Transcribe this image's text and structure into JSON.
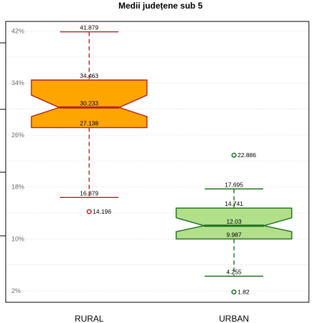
{
  "chart_data": {
    "type": "box",
    "title": "Medii județene sub 5",
    "xlabel": "",
    "ylabel": "",
    "ylim": [
      0,
      44
    ],
    "y_ticks": [
      2,
      10,
      18,
      26,
      34,
      42
    ],
    "y_tick_labels": [
      "2%",
      "10%",
      "18%",
      "26%",
      "34%",
      "42%"
    ],
    "grid": true,
    "categories": [
      "RURAL",
      "URBAN"
    ],
    "boxes": [
      {
        "category": "RURAL",
        "whisker_high": 41.879,
        "q3": 34.463,
        "median": 30.233,
        "q1": 27.138,
        "whisker_low": 16.379,
        "outliers": [
          14.196
        ],
        "whisker_high_label": "41.879",
        "q3_label": "34.463",
        "median_label": "30.233",
        "q1_label": "27.138",
        "whisker_low_label": "16.379",
        "outlier_labels": [
          "14.196"
        ],
        "fill": "#ffa500",
        "stroke": "#b22222"
      },
      {
        "category": "URBAN",
        "whisker_high": 17.695,
        "q3": 14.741,
        "median": 12.03,
        "q1": 9.987,
        "whisker_low": 4.255,
        "outliers": [
          22.886,
          1.82
        ],
        "whisker_high_label": "17.695",
        "q3_label": "14.741",
        "median_label": "12.03",
        "q1_label": "9.987",
        "whisker_low_label": "4.255",
        "outlier_labels": [
          "22.886",
          "1.82"
        ],
        "fill": "#b2df8a",
        "stroke": "#1a6e1a"
      }
    ]
  }
}
